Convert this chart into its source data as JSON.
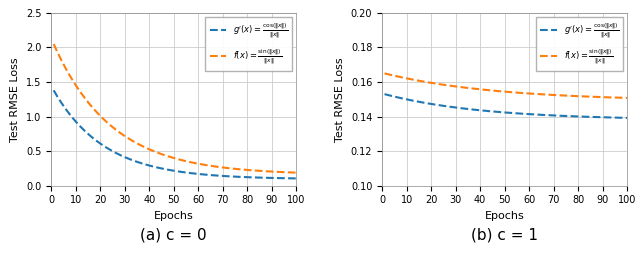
{
  "left_plot": {
    "title": "(a) c = 0",
    "ylim": [
      0.0,
      2.5
    ],
    "yticks": [
      0.0,
      0.5,
      1.0,
      1.5,
      2.0,
      2.5
    ],
    "xlim": [
      0,
      100
    ],
    "xticks": [
      0,
      10,
      20,
      30,
      40,
      50,
      60,
      70,
      80,
      90,
      100
    ],
    "g_start": 1.38,
    "g_end": 0.095,
    "g_rate": 0.048,
    "f_start": 2.05,
    "f_end": 0.16,
    "f_rate": 0.042
  },
  "right_plot": {
    "title": "(b) c = 1",
    "ylim": [
      0.1,
      0.2
    ],
    "yticks": [
      0.1,
      0.12,
      0.14,
      0.16,
      0.18,
      0.2
    ],
    "xlim": [
      0,
      100
    ],
    "xticks": [
      0,
      10,
      20,
      30,
      40,
      50,
      60,
      70,
      80,
      90,
      100
    ],
    "g_start": 0.153,
    "g_end": 0.138,
    "g_rate": 0.025,
    "f_start": 0.165,
    "f_end": 0.149,
    "f_rate": 0.022
  },
  "color_g": "#1f77b4",
  "color_f": "#ff7f0e",
  "ylabel": "Test RMSE Loss",
  "xlabel": "Epochs",
  "background_color": "#ffffff",
  "grid_color": "#cccccc",
  "title_fontsize": 11,
  "label_fontsize": 8,
  "tick_fontsize": 7,
  "legend_fontsize": 6,
  "line_width": 1.5,
  "caption_fontsize": 11
}
